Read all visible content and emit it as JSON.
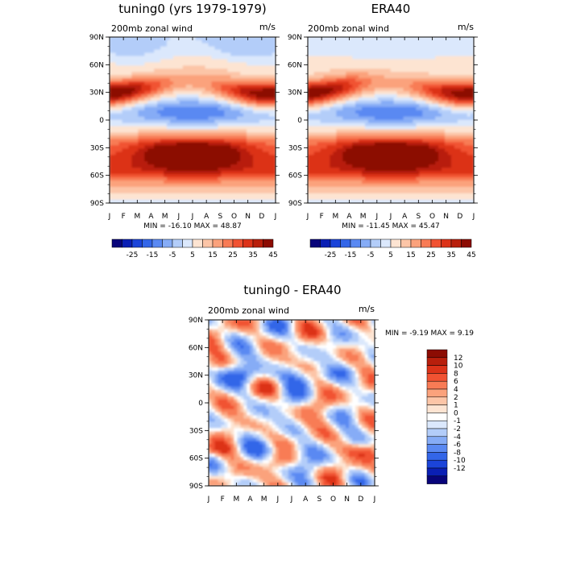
{
  "months": [
    "J",
    "F",
    "M",
    "A",
    "M",
    "J",
    "J",
    "A",
    "S",
    "O",
    "N",
    "D",
    "J"
  ],
  "lat_ticks": [
    "90N",
    "60N",
    "30N",
    "0",
    "30S",
    "60S",
    "90S"
  ],
  "abs_palette": [
    "#08047a",
    "#0a1fb4",
    "#1b44d9",
    "#3366e8",
    "#5a89f2",
    "#86acf6",
    "#b3cdf9",
    "#dbe8fc",
    "#fde4d2",
    "#fcc5a7",
    "#fba27c",
    "#f87b55",
    "#f15232",
    "#dc3319",
    "#b81f0c",
    "#8c0c03"
  ],
  "diff_palette": [
    "#08047a",
    "#0a1fb4",
    "#1b44d9",
    "#3366e8",
    "#5a89f2",
    "#86acf6",
    "#b3cdf9",
    "#dbe8fc",
    "#ffffff",
    "#fde4d2",
    "#fcc5a7",
    "#fba27c",
    "#f87b55",
    "#f15232",
    "#dc3319",
    "#b81f0c",
    "#8c0c03"
  ],
  "chart_data": [
    {
      "type": "heatmap",
      "title": "tuning0 (yrs 1979-1979)",
      "subtitle_left": "200mb zonal wind",
      "subtitle_right": "m/s",
      "xlabel": "",
      "ylabel": "",
      "x_tick_labels": [
        "J",
        "F",
        "M",
        "A",
        "M",
        "J",
        "J",
        "A",
        "S",
        "O",
        "N",
        "D",
        "J"
      ],
      "y_tick_labels": [
        "90N",
        "60N",
        "30N",
        "0",
        "30S",
        "60S",
        "90S"
      ],
      "ylim": [
        -90,
        90
      ],
      "min": -16.1,
      "max": 48.87,
      "stats_text": "MIN = -16.10 MAX =   48.87",
      "colorbar_labels": [
        "-25",
        "-15",
        "-5",
        "5",
        "15",
        "25",
        "35",
        "45"
      ],
      "colorbar_levels": [
        -30,
        -25,
        -20,
        -15,
        -10,
        -5,
        0,
        5,
        10,
        15,
        20,
        25,
        30,
        35,
        40,
        45
      ],
      "legend_placement": "bottom",
      "grid": false
    },
    {
      "type": "heatmap",
      "title": "ERA40",
      "subtitle_left": "200mb zonal wind",
      "subtitle_right": "m/s",
      "xlabel": "",
      "ylabel": "",
      "x_tick_labels": [
        "J",
        "F",
        "M",
        "A",
        "M",
        "J",
        "J",
        "A",
        "S",
        "O",
        "N",
        "D",
        "J"
      ],
      "y_tick_labels": [
        "90N",
        "60N",
        "30N",
        "0",
        "30S",
        "60S",
        "90S"
      ],
      "ylim": [
        -90,
        90
      ],
      "min": -11.45,
      "max": 45.47,
      "stats_text": "MIN = -11.45 MAX =   45.47",
      "colorbar_labels": [
        "-25",
        "-15",
        "-5",
        "5",
        "15",
        "25",
        "35",
        "45"
      ],
      "colorbar_levels": [
        -30,
        -25,
        -20,
        -15,
        -10,
        -5,
        0,
        5,
        10,
        15,
        20,
        25,
        30,
        35,
        40,
        45
      ],
      "legend_placement": "bottom",
      "grid": false
    },
    {
      "type": "heatmap",
      "title": "tuning0 - ERA40",
      "subtitle_left": "200mb zonal wind",
      "subtitle_right": "m/s",
      "xlabel": "",
      "ylabel": "",
      "x_tick_labels": [
        "J",
        "F",
        "M",
        "A",
        "M",
        "J",
        "J",
        "A",
        "S",
        "O",
        "N",
        "D",
        "J"
      ],
      "y_tick_labels": [
        "90N",
        "60N",
        "30N",
        "0",
        "30S",
        "60S",
        "90S"
      ],
      "ylim": [
        -90,
        90
      ],
      "min": -9.19,
      "max": 9.19,
      "stats_text": "MIN =   -9.19 MAX =    9.19",
      "colorbar_labels": [
        "12",
        "10",
        "8",
        "6",
        "4",
        "2",
        "1",
        "0",
        "-1",
        "-2",
        "-4",
        "-6",
        "-8",
        "-10",
        "-12"
      ],
      "colorbar_levels": [
        -14,
        -12,
        -10,
        -8,
        -6,
        -4,
        -2,
        -1,
        0,
        1,
        2,
        4,
        6,
        8,
        10,
        12,
        14
      ],
      "legend_placement": "right",
      "grid": false
    }
  ]
}
